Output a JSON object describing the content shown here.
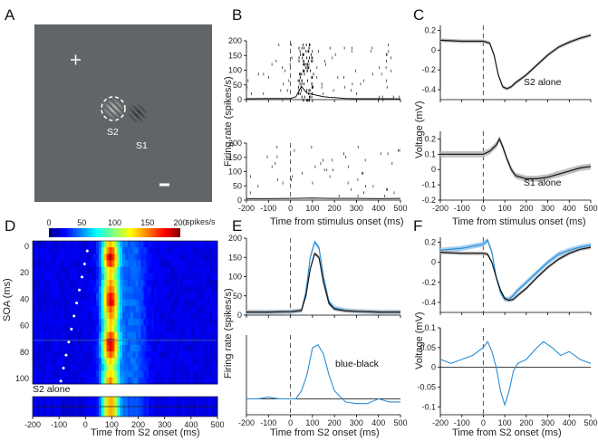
{
  "colors": {
    "stim_bg": "#626567",
    "light_blue": "#2a8fd6",
    "black": "#111111",
    "shade_gray": "#b9b9b9",
    "shade_blue": "#9ccaf0"
  },
  "panels": {
    "A": "A",
    "B": "B",
    "C": "C",
    "D": "D",
    "E": "E",
    "F": "F"
  },
  "chart_data": [
    {
      "id": "A",
      "type": "image",
      "stimulus_labels": [
        "S2",
        "S1"
      ],
      "elements": [
        "fixation-cross",
        "grating-S2-with-dashed-circle",
        "grating-S1",
        "scale-bar"
      ]
    },
    {
      "id": "B",
      "type": "raster+line",
      "xlabel": "Time from stimulus onset (ms)",
      "ylabel": "Firing rate (spikes/s)",
      "xlim": [
        -200,
        500
      ],
      "ylim": [
        0,
        200
      ],
      "xticks": [
        "-200",
        "-100",
        "0",
        "100",
        "200",
        "300",
        "400",
        "500"
      ],
      "yticks": [
        "0",
        "50",
        "100",
        "150",
        "200"
      ],
      "top_psth": {
        "x": [
          -200,
          -100,
          -50,
          0,
          25,
          50,
          75,
          100,
          125,
          150,
          175,
          200,
          250,
          300,
          350,
          400,
          450,
          500
        ],
        "y": [
          3,
          4,
          4,
          4,
          10,
          45,
          22,
          18,
          14,
          10,
          8,
          7,
          4,
          3,
          3,
          3,
          3,
          2
        ]
      },
      "bottom_psth": {
        "x": [
          -200,
          -100,
          0,
          100,
          200,
          300,
          400,
          500
        ],
        "y": [
          5,
          5,
          6,
          7,
          6,
          6,
          5,
          6
        ]
      }
    },
    {
      "id": "C",
      "type": "line",
      "xlabel": "Time from stimulus onset (ms)",
      "ylabel": "Voltage (mV)",
      "xlim": [
        -200,
        500
      ],
      "xticks": [
        "-200",
        "-100",
        "0",
        "100",
        "200",
        "300",
        "400",
        "500"
      ],
      "top": {
        "label": "S2 alone",
        "ylim": [
          -0.5,
          0.25
        ],
        "yticks": [
          "0.2",
          "0",
          "-0.2",
          "-0.4"
        ],
        "x": [
          -200,
          -100,
          0,
          30,
          50,
          70,
          90,
          110,
          130,
          150,
          200,
          250,
          300,
          350,
          400,
          450,
          500
        ],
        "y": [
          0.1,
          0.09,
          0.09,
          0.07,
          -0.05,
          -0.25,
          -0.37,
          -0.39,
          -0.37,
          -0.33,
          -0.25,
          -0.15,
          -0.05,
          0.03,
          0.08,
          0.12,
          0.15
        ]
      },
      "bottom": {
        "label": "S1 alone",
        "ylim": [
          -0.2,
          0.25
        ],
        "yticks": [
          "0.2",
          "0.1",
          "0",
          "-0.1",
          "-0.2"
        ],
        "x": [
          -200,
          -100,
          0,
          30,
          60,
          75,
          90,
          110,
          130,
          150,
          200,
          250,
          300,
          350,
          400,
          450,
          500
        ],
        "y": [
          0.1,
          0.1,
          0.1,
          0.12,
          0.16,
          0.2,
          0.15,
          0.07,
          0.0,
          -0.04,
          -0.06,
          -0.06,
          -0.05,
          -0.03,
          -0.01,
          0.01,
          0.02
        ]
      }
    },
    {
      "id": "D",
      "type": "heatmap",
      "colorbar": {
        "ticks": [
          "0",
          "50",
          "100",
          "150",
          "200"
        ],
        "unit": "spikes/s",
        "range": [
          0,
          200
        ]
      },
      "xlabel": "Time from S2 onset (ms)",
      "ylabel": "SOA (ms)",
      "xticks": [
        "-200",
        "-100",
        "0",
        "100",
        "200",
        "300",
        "400",
        "500"
      ],
      "yticks": [
        "0",
        "20",
        "40",
        "60",
        "80",
        "100"
      ],
      "extra_row_label": "S2 alone",
      "soa": [
        0,
        10,
        20,
        30,
        40,
        50,
        60,
        70,
        80,
        90,
        100
      ]
    },
    {
      "id": "E",
      "type": "line",
      "xlabel": "Time from S2 onset (ms)",
      "ylabel": "Firing rate (spikes/s)",
      "xlim": [
        -200,
        500
      ],
      "xticks": [
        "-200",
        "-100",
        "0",
        "100",
        "200",
        "300",
        "400",
        "500"
      ],
      "top": {
        "ylim": [
          0,
          200
        ],
        "yticks": [
          "0",
          "50",
          "100",
          "150",
          "200"
        ],
        "series": [
          {
            "name": "blue",
            "x": [
              -200,
              -100,
              0,
              50,
              70,
              90,
              110,
              130,
              150,
              175,
              200,
              250,
              300,
              400,
              500
            ],
            "y": [
              8,
              8,
              9,
              12,
              60,
              150,
              190,
              175,
              100,
              35,
              18,
              12,
              10,
              8,
              8
            ]
          },
          {
            "name": "black",
            "x": [
              -200,
              -100,
              0,
              50,
              70,
              90,
              110,
              130,
              150,
              175,
              200,
              250,
              300,
              400,
              500
            ],
            "y": [
              8,
              8,
              9,
              12,
              50,
              120,
              160,
              150,
              85,
              30,
              16,
              11,
              10,
              8,
              8
            ]
          }
        ]
      },
      "bottom": {
        "label": "blue-black",
        "ylim": [
          -10,
          40
        ],
        "x": [
          -200,
          -150,
          -100,
          -50,
          0,
          25,
          50,
          75,
          100,
          125,
          150,
          175,
          200,
          250,
          300,
          350,
          400,
          450,
          500
        ],
        "y": [
          0,
          0,
          1,
          0,
          0,
          0,
          5,
          15,
          32,
          34,
          28,
          15,
          5,
          -2,
          -3,
          -3,
          0,
          -2,
          -2
        ]
      }
    },
    {
      "id": "F",
      "type": "line",
      "xlabel": "Time from S2 onset (ms)",
      "ylabel": "Voltage (mV)",
      "xlim": [
        -200,
        500
      ],
      "xticks": [
        "-200",
        "-100",
        "0",
        "100",
        "200",
        "300",
        "400",
        "500"
      ],
      "top": {
        "ylim": [
          -0.5,
          0.25
        ],
        "yticks": [
          "0.2",
          "0",
          "-0.2",
          "-0.4"
        ],
        "series": [
          {
            "name": "blue",
            "x": [
              -200,
              -100,
              0,
              20,
              40,
              60,
              80,
              100,
              120,
              140,
              160,
              200,
              250,
              300,
              350,
              400,
              450,
              500
            ],
            "y": [
              0.12,
              0.14,
              0.18,
              0.22,
              0.1,
              -0.15,
              -0.3,
              -0.37,
              -0.37,
              -0.33,
              -0.28,
              -0.2,
              -0.1,
              0.0,
              0.08,
              0.12,
              0.15,
              0.17
            ]
          },
          {
            "name": "black",
            "x": [
              -200,
              -100,
              0,
              20,
              40,
              60,
              80,
              100,
              120,
              140,
              160,
              200,
              250,
              300,
              350,
              400,
              450,
              500
            ],
            "y": [
              0.1,
              0.09,
              0.09,
              0.08,
              0.0,
              -0.15,
              -0.28,
              -0.36,
              -0.38,
              -0.37,
              -0.33,
              -0.26,
              -0.15,
              -0.05,
              0.03,
              0.09,
              0.13,
              0.15
            ]
          }
        ]
      },
      "bottom": {
        "ylim": [
          -0.12,
          0.1
        ],
        "yticks": [
          "0.1",
          "0.05",
          "0",
          "-0.05",
          "-0.1"
        ],
        "x": [
          -200,
          -150,
          -100,
          -50,
          0,
          20,
          40,
          60,
          80,
          100,
          120,
          140,
          160,
          200,
          250,
          280,
          320,
          360,
          400,
          450,
          500
        ],
        "y": [
          0.02,
          0.01,
          0.02,
          0.03,
          0.05,
          0.065,
          0.04,
          0.0,
          -0.06,
          -0.095,
          -0.06,
          -0.01,
          0.01,
          0.02,
          0.05,
          0.065,
          0.05,
          0.03,
          0.04,
          0.02,
          0.01
        ]
      }
    }
  ]
}
